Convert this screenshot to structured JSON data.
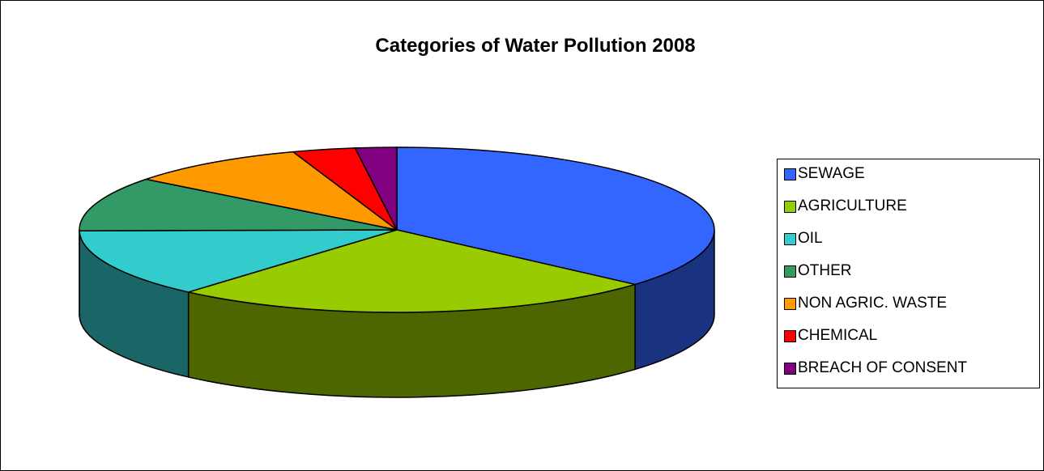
{
  "chart_data": {
    "type": "pie",
    "title": "Categories of Water Pollution 2008",
    "legend_position": "right",
    "three_d": true,
    "slices": [
      {
        "label": "SEWAGE",
        "value": 36.5,
        "color": "#3366FF",
        "side_color": "#1A3380"
      },
      {
        "label": "AGRICULTURE",
        "value": 24.9,
        "color": "#99CC00",
        "side_color": "#4D6600"
      },
      {
        "label": "OIL",
        "value": 13.4,
        "color": "#33CCCC",
        "side_color": "#1A6666"
      },
      {
        "label": "OTHER",
        "value": 10.7,
        "color": "#339966",
        "side_color": "#1A4D33"
      },
      {
        "label": "NON AGRIC. WASTE",
        "value": 9.2,
        "color": "#FF9900",
        "side_color": "#804D00"
      },
      {
        "label": "CHEMICAL",
        "value": 3.2,
        "color": "#FF0000",
        "side_color": "#800000"
      },
      {
        "label": "BREACH OF CONSENT",
        "value": 2.1,
        "color": "#800080",
        "side_color": "#400040"
      }
    ]
  }
}
